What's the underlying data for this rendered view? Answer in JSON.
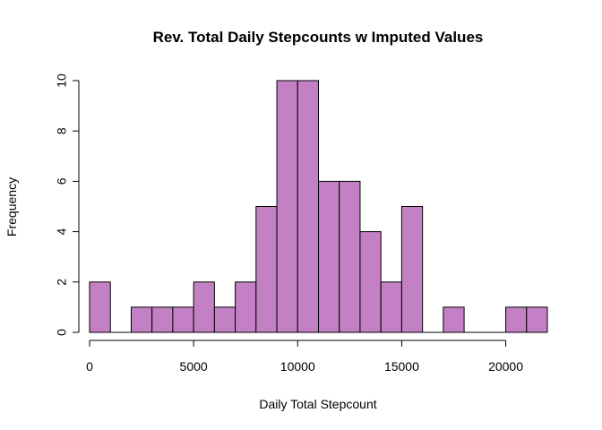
{
  "chart_data": {
    "type": "bar",
    "title": "Rev. Total Daily Stepcounts w Imputed Values",
    "xlabel": "Daily Total Stepcount",
    "ylabel": "Frequency",
    "bin_width": 1000,
    "bins": [
      {
        "start": 0,
        "end": 1000,
        "count": 2
      },
      {
        "start": 1000,
        "end": 2000,
        "count": 0
      },
      {
        "start": 2000,
        "end": 3000,
        "count": 1
      },
      {
        "start": 3000,
        "end": 4000,
        "count": 1
      },
      {
        "start": 4000,
        "end": 5000,
        "count": 1
      },
      {
        "start": 5000,
        "end": 6000,
        "count": 2
      },
      {
        "start": 6000,
        "end": 7000,
        "count": 1
      },
      {
        "start": 7000,
        "end": 8000,
        "count": 2
      },
      {
        "start": 8000,
        "end": 9000,
        "count": 5
      },
      {
        "start": 9000,
        "end": 10000,
        "count": 10
      },
      {
        "start": 10000,
        "end": 11000,
        "count": 10
      },
      {
        "start": 11000,
        "end": 12000,
        "count": 6
      },
      {
        "start": 12000,
        "end": 13000,
        "count": 6
      },
      {
        "start": 13000,
        "end": 14000,
        "count": 4
      },
      {
        "start": 14000,
        "end": 15000,
        "count": 2
      },
      {
        "start": 15000,
        "end": 16000,
        "count": 5
      },
      {
        "start": 16000,
        "end": 17000,
        "count": 0
      },
      {
        "start": 17000,
        "end": 18000,
        "count": 1
      },
      {
        "start": 18000,
        "end": 19000,
        "count": 0
      },
      {
        "start": 19000,
        "end": 20000,
        "count": 0
      },
      {
        "start": 20000,
        "end": 21000,
        "count": 1
      },
      {
        "start": 21000,
        "end": 22000,
        "count": 1
      }
    ],
    "xlim": [
      0,
      22000
    ],
    "ylim": [
      0,
      10
    ],
    "x_ticks": [
      0,
      5000,
      10000,
      15000,
      20000
    ],
    "y_ticks": [
      0,
      2,
      4,
      6,
      8,
      10
    ],
    "bar_color": "#c480c4",
    "grid": false
  }
}
